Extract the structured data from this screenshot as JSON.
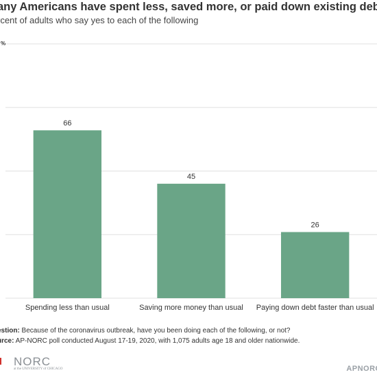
{
  "title": "any Americans have spent less, saved more, or paid down existing debt.",
  "subtitle": "rcent of adults who say yes to each of the following",
  "chart_data": {
    "type": "bar",
    "categories": [
      "Spending less than usual",
      "Saving more money than usual",
      "Paying down debt faster than usual"
    ],
    "values": [
      66,
      45,
      26
    ],
    "ylim": [
      0,
      100
    ],
    "y_ticks": [
      0,
      25,
      50,
      75,
      100
    ],
    "y_top_label": "%",
    "grid": true,
    "bar_color": "#6aa587",
    "grid_color": "#e0e0e0"
  },
  "notes": {
    "question_label": "estion:",
    "question_text": " Because of the coronavirus outbreak, have you been doing each of the following, or not?",
    "source_label": "urce:",
    "source_text": " AP-NORC poll conducted August 17-19, 2020, with 1,075 adults age 18 and older nationwide."
  },
  "logos": {
    "norc_text": "NORC",
    "norc_sub": "at the UNIVERSITY of CHICAGO",
    "apnorc_text": "APNORC"
  }
}
